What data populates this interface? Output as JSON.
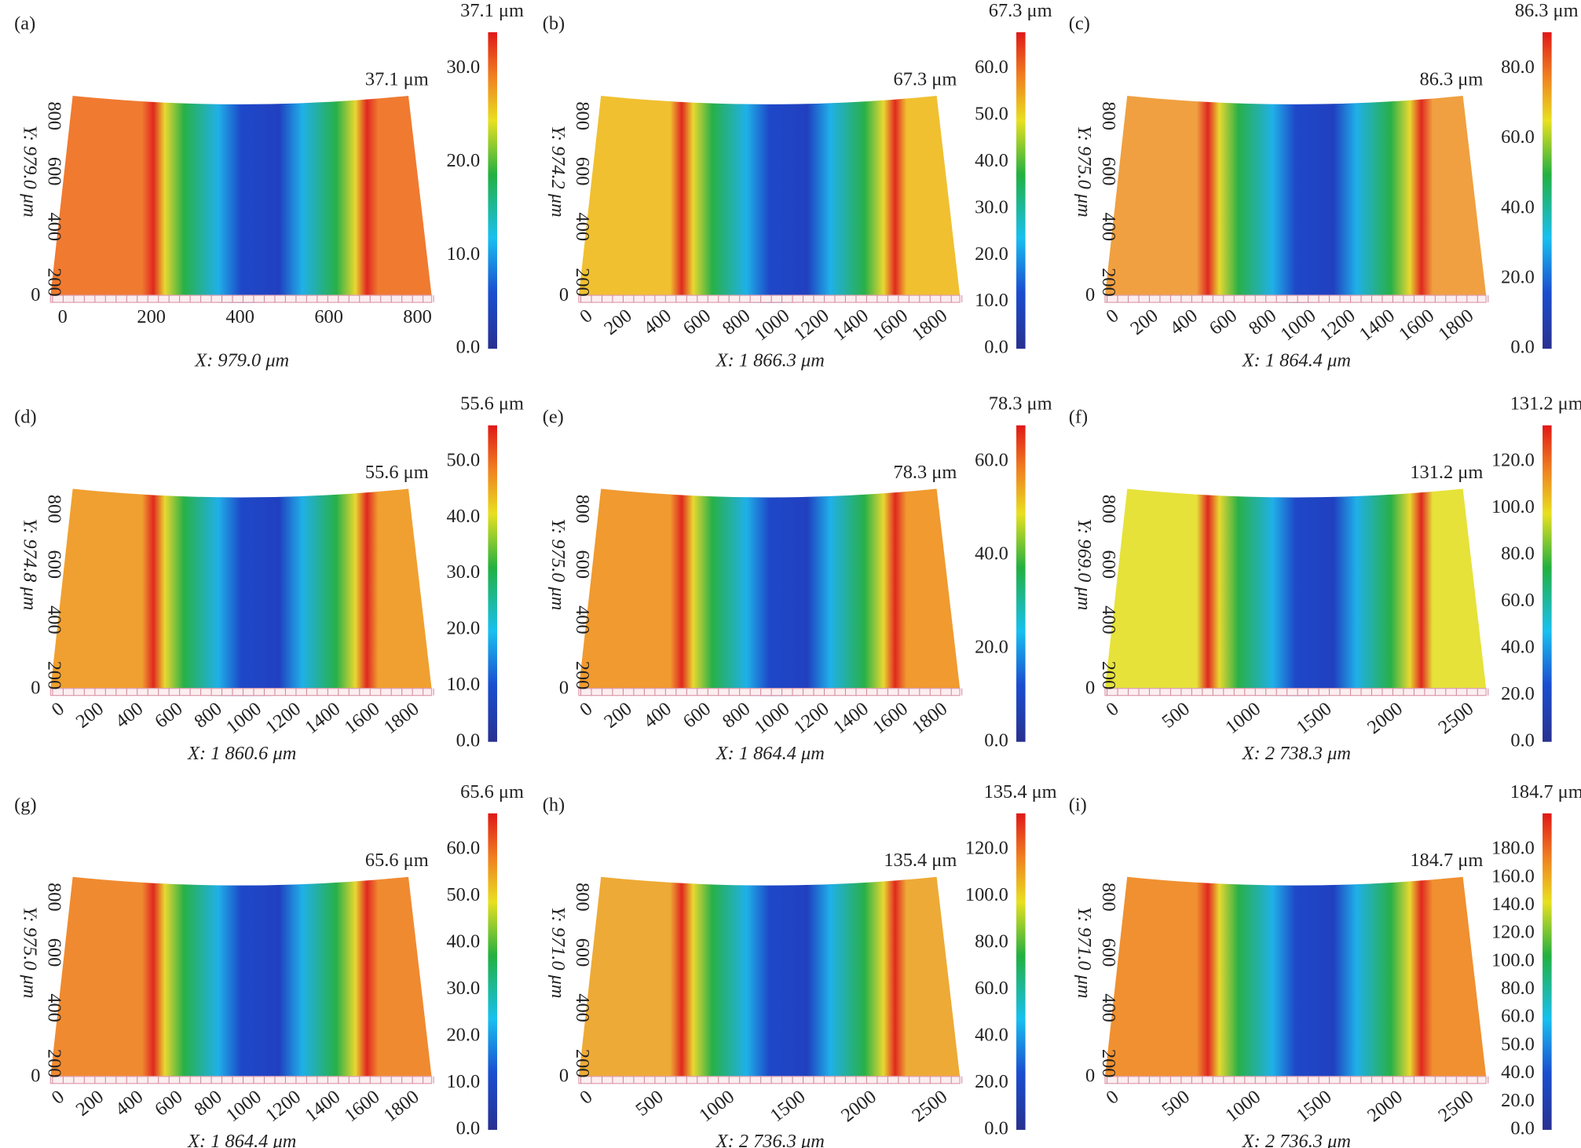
{
  "panels": [
    {
      "label": "(a)",
      "peak_label": "37.1 μm",
      "surface_color": "#f07a30",
      "colorbar": {
        "title": "37.1 μm",
        "ticks": [
          "0.0",
          "10.0",
          "20.0",
          "30.0"
        ]
      },
      "x_ticks": [
        "0",
        "200",
        "400",
        "600",
        "800"
      ],
      "x_title": "X: 979.0 μm",
      "y_ticks": [
        "0",
        "200",
        "400",
        "600",
        "800"
      ],
      "y_title": "Y: 979.0 μm"
    },
    {
      "label": "(b)",
      "peak_label": "67.3 μm",
      "surface_color": "#f0c030",
      "colorbar": {
        "title": "67.3 μm",
        "ticks": [
          "0.0",
          "10.0",
          "20.0",
          "30.0",
          "40.0",
          "50.0",
          "60.0"
        ]
      },
      "x_ticks": [
        "0",
        "200",
        "400",
        "600",
        "800",
        "1000",
        "1200",
        "1400",
        "1600",
        "1800"
      ],
      "x_title": "X: 1 866.3 μm",
      "y_ticks": [
        "0",
        "200",
        "400",
        "600",
        "800"
      ],
      "y_title": "Y: 974.2 μm"
    },
    {
      "label": "(c)",
      "peak_label": "86.3 μm",
      "surface_color": "#f0a040",
      "colorbar": {
        "title": "86.3 μm",
        "ticks": [
          "0.0",
          "20.0",
          "40.0",
          "60.0",
          "80.0"
        ]
      },
      "x_ticks": [
        "0",
        "200",
        "400",
        "600",
        "800",
        "1000",
        "1200",
        "1400",
        "1600",
        "1800"
      ],
      "x_title": "X: 1 864.4 μm",
      "y_ticks": [
        "0",
        "200",
        "400",
        "600",
        "800"
      ],
      "y_title": "Y: 975.0 μm"
    },
    {
      "label": "(d)",
      "peak_label": "55.6 μm",
      "surface_color": "#f0a030",
      "colorbar": {
        "title": "55.6 μm",
        "ticks": [
          "0.0",
          "10.0",
          "20.0",
          "30.0",
          "40.0",
          "50.0"
        ]
      },
      "x_ticks": [
        "0",
        "200",
        "400",
        "600",
        "800",
        "1000",
        "1200",
        "1400",
        "1600",
        "1800"
      ],
      "x_title": "X: 1 860.6 μm",
      "y_ticks": [
        "0",
        "200",
        "400",
        "600",
        "800"
      ],
      "y_title": "Y: 974.8 μm"
    },
    {
      "label": "(e)",
      "peak_label": "78.3 μm",
      "surface_color": "#f09a30",
      "colorbar": {
        "title": "78.3 μm",
        "ticks": [
          "0.0",
          "20.0",
          "40.0",
          "60.0"
        ]
      },
      "x_ticks": [
        "0",
        "200",
        "400",
        "600",
        "800",
        "1000",
        "1200",
        "1400",
        "1600",
        "1800"
      ],
      "x_title": "X: 1 864.4 μm",
      "y_ticks": [
        "0",
        "200",
        "400",
        "600",
        "800"
      ],
      "y_title": "Y: 975.0 μm"
    },
    {
      "label": "(f)",
      "peak_label": "131.2 μm",
      "surface_color": "#e6e23a",
      "colorbar": {
        "title": "131.2 μm",
        "ticks": [
          "0.0",
          "20.0",
          "40.0",
          "60.0",
          "80.0",
          "100.0",
          "120.0"
        ]
      },
      "x_ticks": [
        "0",
        "500",
        "1000",
        "1500",
        "2000",
        "2500"
      ],
      "x_title": "X: 2 738.3 μm",
      "y_ticks": [
        "0",
        "200",
        "400",
        "600",
        "800"
      ],
      "y_title": "Y: 969.0 μm"
    },
    {
      "label": "(g)",
      "peak_label": "65.6 μm",
      "surface_color": "#f08a30",
      "colorbar": {
        "title": "65.6 μm",
        "ticks": [
          "0.0",
          "10.0",
          "20.0",
          "30.0",
          "40.0",
          "50.0",
          "60.0"
        ]
      },
      "x_ticks": [
        "0",
        "200",
        "400",
        "600",
        "800",
        "1000",
        "1200",
        "1400",
        "1600",
        "1800"
      ],
      "x_title": "X: 1 864.4 μm",
      "y_ticks": [
        "0",
        "200",
        "400",
        "600",
        "800"
      ],
      "y_title": "Y: 975.0 μm"
    },
    {
      "label": "(h)",
      "peak_label": "135.4 μm",
      "surface_color": "#eeaa36",
      "colorbar": {
        "title": "135.4 μm",
        "ticks": [
          "0.0",
          "20.0",
          "40.0",
          "60.0",
          "80.0",
          "100.0",
          "120.0"
        ]
      },
      "x_ticks": [
        "0",
        "500",
        "1000",
        "1500",
        "2000",
        "2500"
      ],
      "x_title": "X: 2 736.3 μm",
      "y_ticks": [
        "0",
        "200",
        "400",
        "600",
        "800"
      ],
      "y_title": "Y: 971.0 μm"
    },
    {
      "label": "(i)",
      "peak_label": "184.7 μm",
      "surface_color": "#f09030",
      "colorbar": {
        "title": "184.7 μm",
        "ticks": [
          "0.0",
          "20.0",
          "40.0",
          "50.0",
          "60.0",
          "80.0",
          "100.0",
          "120.0",
          "140.0",
          "160.0",
          "180.0"
        ]
      },
      "x_ticks": [
        "0",
        "500",
        "1000",
        "1500",
        "2000",
        "2500"
      ],
      "x_title": "X: 2 736.3 μm",
      "y_ticks": [
        "0",
        "200",
        "400",
        "600",
        "800"
      ],
      "y_title": "Y: 971.0 μm"
    }
  ]
}
